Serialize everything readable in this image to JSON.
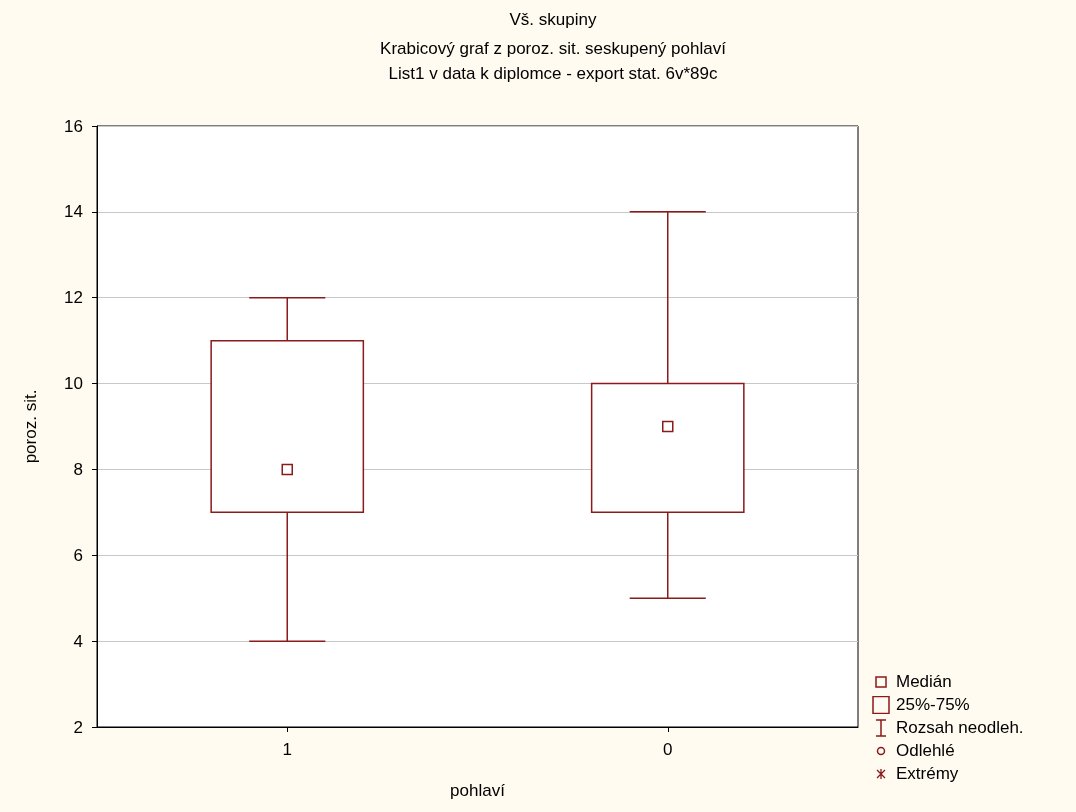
{
  "chart_data": {
    "type": "box",
    "title": "Vš. skupiny",
    "subtitle": "Krabicový graf z poroz. sit. seskupený pohlaví\nList1 v data k diplomce - export stat. 6v*89c",
    "xlabel": "pohlaví",
    "ylabel": "poroz. sit.",
    "categories": [
      "1",
      "0"
    ],
    "boxes": [
      {
        "low": 4,
        "q1": 7,
        "median": 8,
        "q3": 11,
        "high": 12
      },
      {
        "low": 5,
        "q1": 7,
        "median": 9,
        "q3": 10,
        "high": 14
      }
    ],
    "color": "#8b1a1a",
    "marker": "square",
    "ylim": [
      2,
      16
    ],
    "yticks": [
      2,
      4,
      6,
      8,
      10,
      12,
      14,
      16
    ],
    "grid": "y",
    "annotations": [
      "Medián",
      "25%-75%",
      "Rozsah neodleh.",
      "Odlehlé",
      "Extrémy"
    ]
  }
}
